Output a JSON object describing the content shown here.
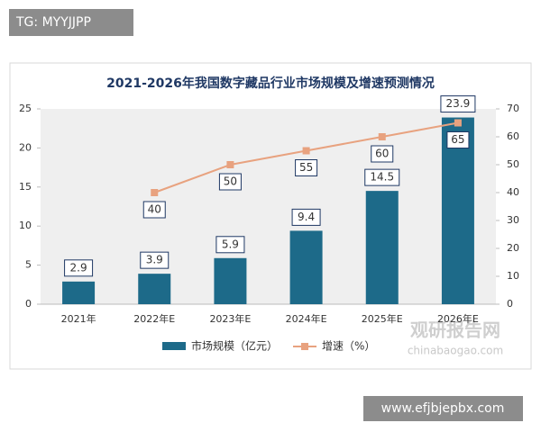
{
  "tag": "TG: MYYJJPP",
  "footer": "www.efjbjepbx.com",
  "watermark": {
    "name": "观研报告网",
    "site": "chinabaogao.com"
  },
  "chart_data": {
    "type": "bar-line",
    "title": "2021-2026年我国数字藏品行业市场规模及增速预测情况",
    "categories": [
      "2021年",
      "2022年E",
      "2023年E",
      "2024年E",
      "2025年E",
      "2026年E"
    ],
    "series": [
      {
        "name": "市场规模（亿元）",
        "color": "#1d6a89",
        "type": "bar",
        "values": [
          2.9,
          3.9,
          5.9,
          9.4,
          14.5,
          23.9
        ]
      },
      {
        "name": "增速（%）",
        "color": "#e8a27f",
        "type": "line",
        "axis": "y2",
        "values": [
          null,
          40,
          50,
          55,
          60,
          65
        ]
      }
    ],
    "ylim": [
      0,
      25
    ],
    "yticks": [
      0,
      5,
      10,
      15,
      20,
      25
    ],
    "y2lim": [
      0,
      70
    ],
    "y2ticks": [
      0,
      10,
      20,
      30,
      40,
      50,
      60,
      70
    ]
  }
}
